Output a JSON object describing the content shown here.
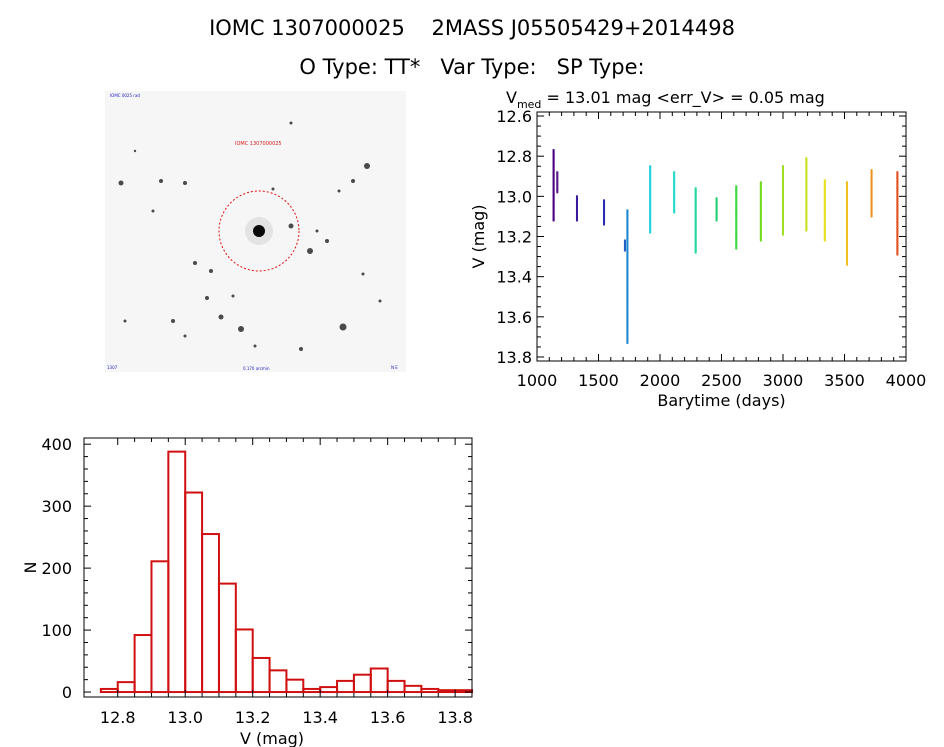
{
  "header": {
    "title": "IOMC 1307000025    2MASS J05505429+2014498",
    "types": "O Type: TT*   Var Type:   SP Type:"
  },
  "finding_chart": {
    "label_top_left": "IOMC 0025 rad",
    "label_target": "IOMC 1307000025",
    "label_bottom_left": "1307",
    "label_bottom_center": "0.170 arcmin",
    "label_bottom_right": "N E",
    "colors": {
      "background": "#f6f6f6",
      "circle": "#e01010",
      "label": "#2020c0"
    }
  },
  "chart_data": [
    {
      "type": "scatter",
      "title_prefix": "V",
      "title_sub": "med",
      "title_rest": " = 13.01 mag <err_V> = 0.05 mag",
      "xlabel": "Barytime (days)",
      "ylabel": "V (mag)",
      "xlim": [
        1000,
        4000
      ],
      "ylim": [
        12.58,
        13.82
      ],
      "y_inverted": true,
      "xticks": [
        1000,
        1500,
        2000,
        2500,
        3000,
        3500,
        4000
      ],
      "xtick_labels": [
        "1000",
        "1500",
        "2000",
        "2500",
        "3000",
        "3500",
        "4000"
      ],
      "yticks": [
        12.6,
        12.8,
        13.0,
        13.2,
        13.4,
        13.6,
        13.8
      ],
      "ytick_labels": [
        "12.6",
        "12.8",
        "13.0",
        "13.2",
        "13.4",
        "13.6",
        "13.8"
      ],
      "color_scale": "rainbow by time",
      "groups": [
        {
          "x": 1135,
          "ymin": 12.77,
          "ymax": 13.12,
          "color": "#4b0082"
        },
        {
          "x": 1165,
          "ymin": 12.88,
          "ymax": 12.98,
          "color": "#5a1a8c"
        },
        {
          "x": 1325,
          "ymin": 13.0,
          "ymax": 13.12,
          "color": "#3a1a9c"
        },
        {
          "x": 1545,
          "ymin": 13.02,
          "ymax": 13.14,
          "color": "#2a2ab0"
        },
        {
          "x": 1715,
          "ymin": 13.22,
          "ymax": 13.27,
          "color": "#2060c0"
        },
        {
          "x": 1735,
          "ymin": 13.07,
          "ymax": 13.73,
          "color": "#1e88d0"
        },
        {
          "x": 1920,
          "ymin": 12.85,
          "ymax": 13.18,
          "color": "#22d0e0"
        },
        {
          "x": 2115,
          "ymin": 12.88,
          "ymax": 13.08,
          "color": "#22dcc8"
        },
        {
          "x": 2290,
          "ymin": 12.96,
          "ymax": 13.28,
          "color": "#20d8a0"
        },
        {
          "x": 2460,
          "ymin": 13.01,
          "ymax": 13.12,
          "color": "#20d070"
        },
        {
          "x": 2620,
          "ymin": 12.95,
          "ymax": 13.26,
          "color": "#40d840"
        },
        {
          "x": 2820,
          "ymin": 12.93,
          "ymax": 13.22,
          "color": "#70dc20"
        },
        {
          "x": 3000,
          "ymin": 12.85,
          "ymax": 13.19,
          "color": "#a0e020"
        },
        {
          "x": 3190,
          "ymin": 12.81,
          "ymax": 13.17,
          "color": "#c8e020"
        },
        {
          "x": 3340,
          "ymin": 12.92,
          "ymax": 13.22,
          "color": "#e8e020"
        },
        {
          "x": 3520,
          "ymin": 12.93,
          "ymax": 13.34,
          "color": "#f0c020"
        },
        {
          "x": 3720,
          "ymin": 12.87,
          "ymax": 13.1,
          "color": "#f09020"
        },
        {
          "x": 3930,
          "ymin": 12.88,
          "ymax": 13.29,
          "color": "#e05020"
        }
      ]
    },
    {
      "type": "bar",
      "subtype": "histogram",
      "xlabel": "V (mag)",
      "ylabel": "N",
      "xlim": [
        12.7,
        13.85
      ],
      "ylim": [
        -8,
        410
      ],
      "xticks": [
        12.8,
        13.0,
        13.2,
        13.4,
        13.6,
        13.8
      ],
      "xtick_labels": [
        "12.8",
        "13.0",
        "13.2",
        "13.4",
        "13.6",
        "13.8"
      ],
      "yticks": [
        0,
        100,
        200,
        300,
        400
      ],
      "ytick_labels": [
        "0",
        "100",
        "200",
        "300",
        "400"
      ],
      "bin_start": 12.75,
      "bin_width": 0.05,
      "values": [
        5,
        16,
        92,
        211,
        388,
        322,
        255,
        175,
        101,
        55,
        35,
        20,
        5,
        8,
        18,
        28,
        38,
        18,
        10,
        5,
        3,
        3
      ],
      "bar_color": "#d01010"
    }
  ]
}
